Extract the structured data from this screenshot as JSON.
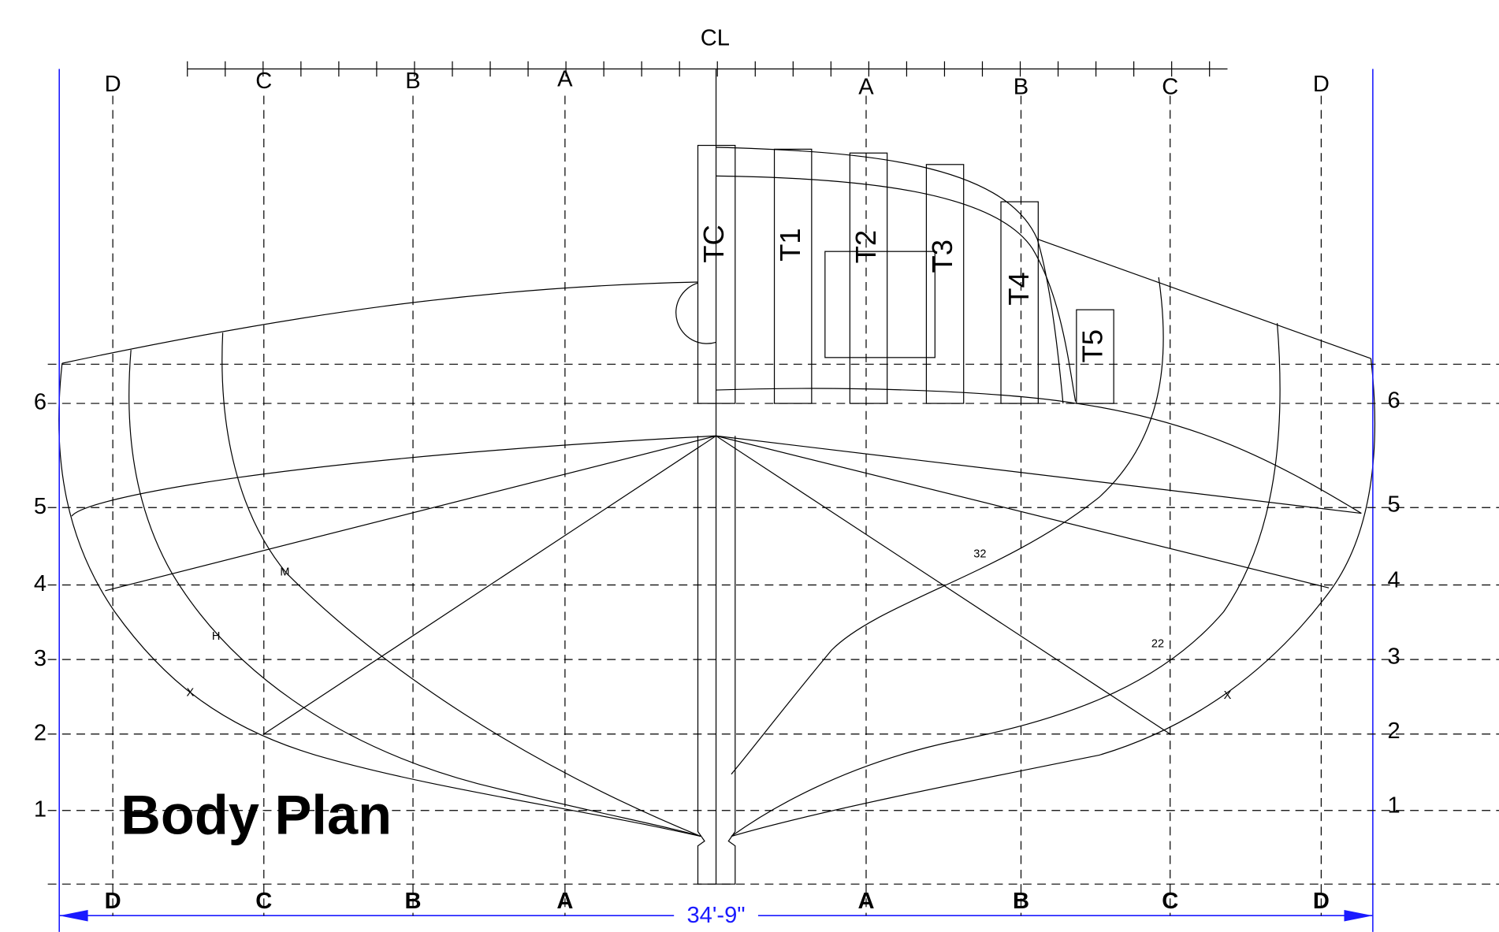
{
  "title": "Body Plan",
  "centerline": "CL",
  "dimension": "34'-9\"",
  "buttocks_top": [
    "D",
    "C",
    "B",
    "A",
    "A",
    "B",
    "C",
    "D"
  ],
  "buttocks_bottom": [
    "D",
    "C",
    "B",
    "A",
    "A",
    "B",
    "C",
    "D"
  ],
  "waterlines_left": [
    "6",
    "5",
    "4",
    "3",
    "2",
    "1"
  ],
  "waterlines_right": [
    "6",
    "5",
    "4",
    "3",
    "2",
    "1"
  ],
  "tanks": [
    "TC",
    "T1",
    "T2",
    "T3",
    "T4",
    "T5"
  ],
  "curve_labels": [
    "M",
    "H",
    "X",
    "32",
    "22",
    "X"
  ]
}
